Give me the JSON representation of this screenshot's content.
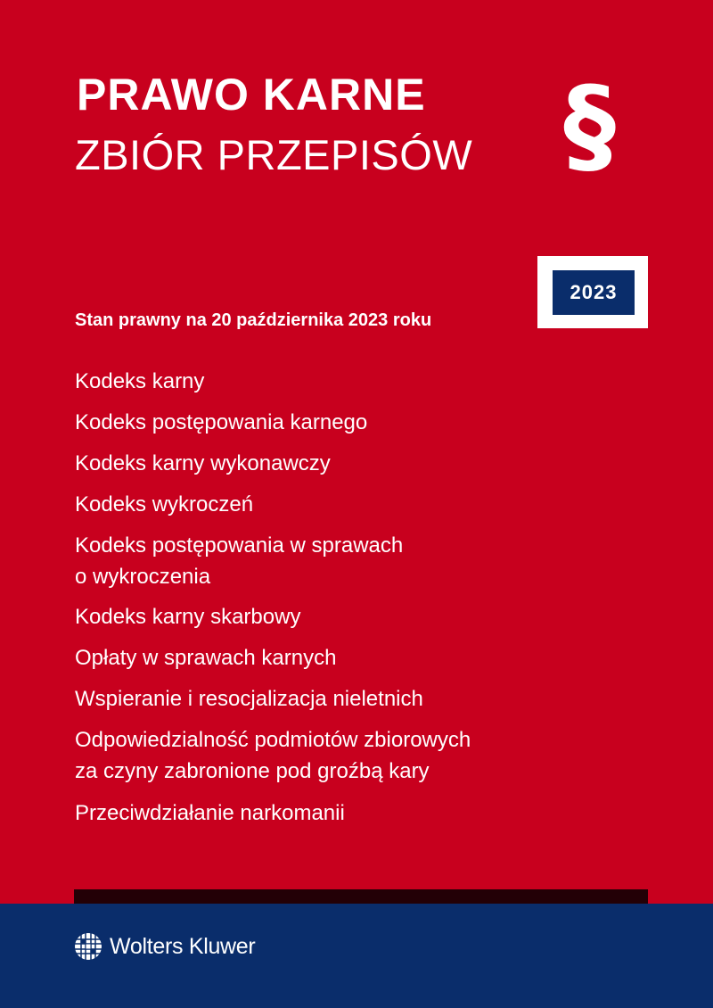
{
  "cover": {
    "title_line1": "PRAWO KARNE",
    "title_line2": "ZBIÓR PRZEPISÓW",
    "section_symbol": "§",
    "year": "2023",
    "legal_status": "Stan prawny na 20 października 2023 roku",
    "contents": [
      {
        "line1": "Kodeks karny"
      },
      {
        "line1": "Kodeks postępowania karnego"
      },
      {
        "line1": "Kodeks karny wykonawczy"
      },
      {
        "line1": "Kodeks wykroczeń"
      },
      {
        "line1": "Kodeks postępowania w sprawach",
        "line2": "o wykroczenia"
      },
      {
        "line1": "Kodeks karny skarbowy"
      },
      {
        "line1": "Opłaty w sprawach karnych"
      },
      {
        "line1": "Wspieranie i resocjalizacja nieletnich"
      },
      {
        "line1": "Odpowiedzialność podmiotów zbiorowych",
        "line2": "za czyny zabronione pod groźbą kary"
      },
      {
        "line1": "Przeciwdziałanie narkomanii"
      }
    ],
    "publisher": "Wolters Kluwer",
    "colors": {
      "background": "#c8001e",
      "footer": "#0a2d6b",
      "accent_bar": "#230006"
    }
  }
}
